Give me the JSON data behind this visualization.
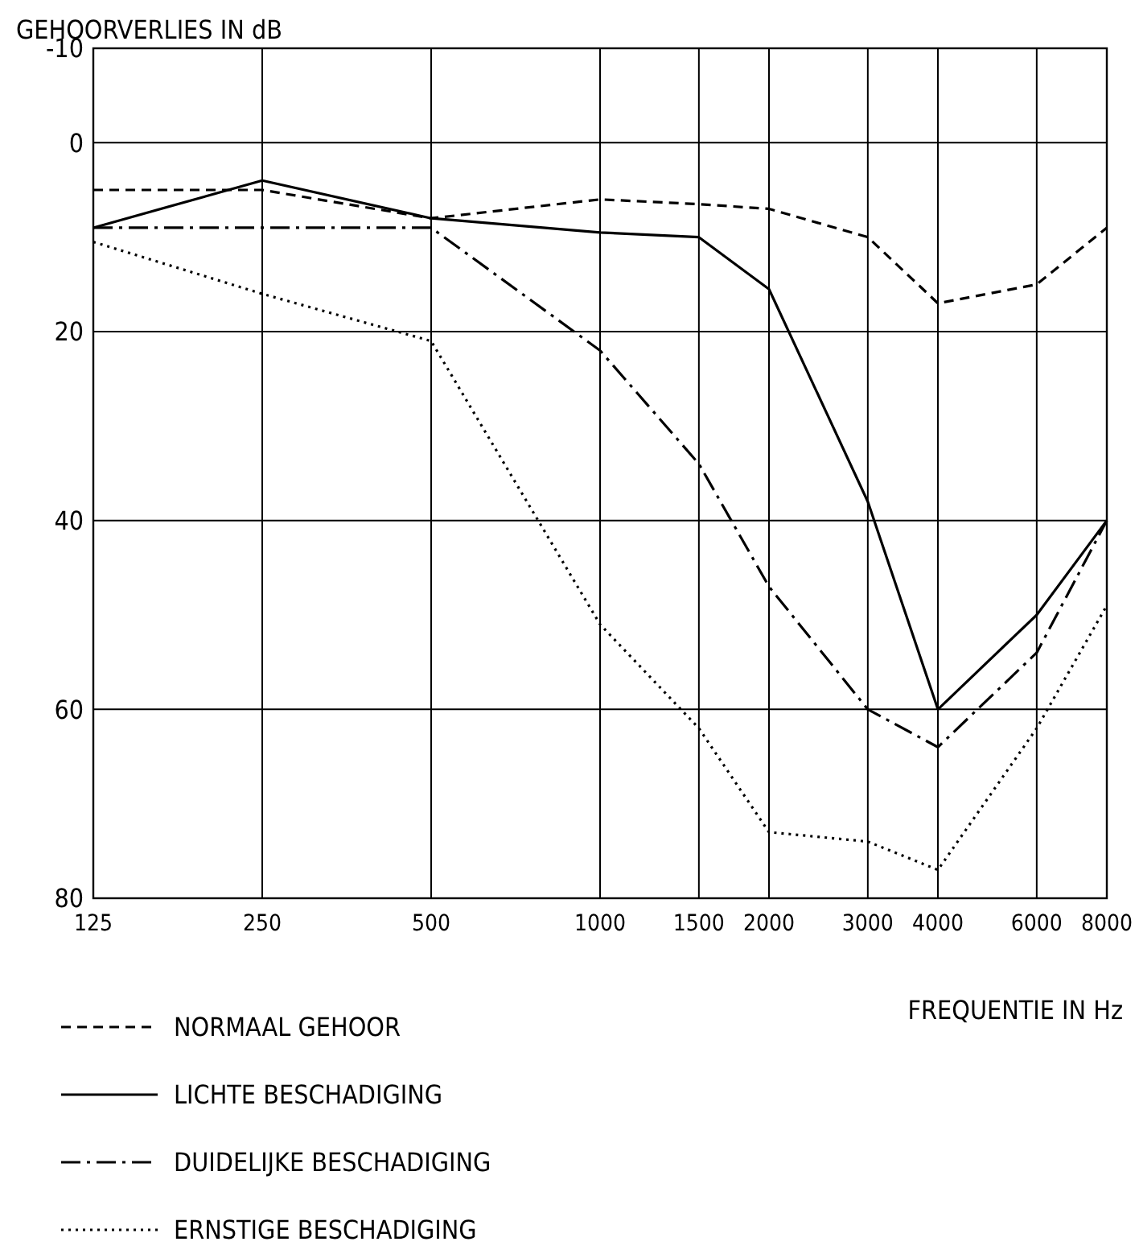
{
  "chart_data": {
    "type": "line",
    "ylabel": "GEHOORVERLIES IN dB",
    "xlabel": "FREQUENTIE IN Hz",
    "log": "x",
    "x": [
      125,
      250,
      500,
      1000,
      1500,
      2000,
      3000,
      4000,
      6000,
      8000
    ],
    "xlim": [
      125,
      8000
    ],
    "xticks": [
      125,
      250,
      500,
      1000,
      1500,
      2000,
      3000,
      4000,
      6000,
      8000
    ],
    "ylim": [
      80,
      -10
    ],
    "yticks": [
      -10,
      0,
      20,
      40,
      60,
      80
    ],
    "grid": true,
    "legend": "bottom",
    "series": [
      {
        "name": "NORMAAL GEHOOR",
        "color": "#000000",
        "line_style": "dashed",
        "values": [
          5,
          5,
          8,
          6,
          6.5,
          7,
          10,
          17,
          15,
          9
        ]
      },
      {
        "name": "LICHTE BESCHADIGING",
        "color": "#000000",
        "line_style": "solid",
        "values": [
          9,
          4,
          8,
          9.5,
          10,
          15.5,
          38,
          60,
          50,
          40
        ]
      },
      {
        "name": "DUIDELIJKE BESCHADIGING",
        "color": "#000000",
        "line_style": "dashdot",
        "values": [
          9,
          9,
          9,
          22,
          34,
          47,
          60,
          64,
          54,
          40
        ]
      },
      {
        "name": "ERNSTIGE BESCHADIGING",
        "color": "#000000",
        "line_style": "dotted",
        "values": [
          10.5,
          16,
          21,
          51,
          62,
          73,
          74,
          77,
          62,
          49
        ]
      }
    ]
  }
}
